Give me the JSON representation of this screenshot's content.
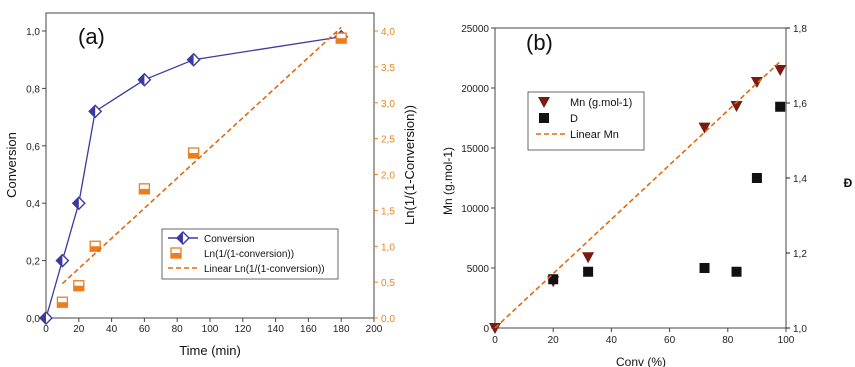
{
  "colors": {
    "conversion": "#3b3a9e",
    "ln": "#ee7d1e",
    "linear": "#e06a10",
    "mn": "#7a1a14",
    "d": "#111111",
    "right_axis_a": "#e98520",
    "axis": "#444444"
  },
  "chart_data": [
    {
      "type": "line",
      "panel_label": "(a)",
      "xlabel": "Time (min)",
      "ylabel": "Conversion",
      "y2label": "Ln(1/(1-Conversion))",
      "xlim": [
        0,
        200
      ],
      "ylim": [
        0,
        1.0
      ],
      "y2lim": [
        0,
        4.0
      ],
      "x_ticks": [
        "0",
        "20",
        "40",
        "60",
        "80",
        "100",
        "120",
        "140",
        "160",
        "180",
        "200"
      ],
      "y_ticks": [
        "0,0",
        "0,2",
        "0,4",
        "0,6",
        "0,8",
        "1,0"
      ],
      "y2_ticks": [
        "0,0",
        "0,5",
        "1,0",
        "1,5",
        "2,0",
        "2,5",
        "3,0",
        "3,5",
        "4,0"
      ],
      "series": [
        {
          "name": "Conversion",
          "axis": "left",
          "marker": "diamond",
          "line": "solid",
          "x": [
            0,
            10,
            20,
            30,
            60,
            90,
            180
          ],
          "values": [
            0,
            0.2,
            0.4,
            0.72,
            0.83,
            0.9,
            0.98
          ]
        },
        {
          "name": "Ln(1/(1-conversion))",
          "axis": "right",
          "marker": "square-half",
          "x": [
            10,
            20,
            30,
            60,
            90,
            180
          ],
          "values": [
            0.22,
            0.45,
            1.0,
            1.8,
            2.3,
            3.9
          ]
        },
        {
          "name": "Linear Ln(1/(1-conversion))",
          "axis": "right",
          "marker": "none",
          "line": "dashed",
          "x": [
            10,
            180
          ],
          "values": [
            0.48,
            4.05
          ]
        }
      ],
      "legend": {
        "position": "lower-right",
        "entries": [
          "Conversion",
          "Ln(1/(1-conversion))",
          "Linear Ln(1/(1-conversion))"
        ]
      }
    },
    {
      "type": "scatter",
      "panel_label": "(b)",
      "xlabel": "Conv (%)",
      "ylabel": "Mn (g.mol-1)",
      "y2label": "Đ",
      "xlim": [
        0,
        100
      ],
      "ylim": [
        0,
        25000
      ],
      "y2lim": [
        1.0,
        1.8
      ],
      "x_ticks": [
        "0",
        "20",
        "40",
        "60",
        "80",
        "100"
      ],
      "y_ticks": [
        "0",
        "5000",
        "10000",
        "15000",
        "20000",
        "25000"
      ],
      "y2_ticks": [
        "1,0",
        "1,2",
        "1,4",
        "1,6",
        "1,8"
      ],
      "series": [
        {
          "name": "Mn (g.mol-1)",
          "axis": "left",
          "marker": "triangle-down",
          "x": [
            0,
            20,
            32,
            72,
            83,
            90,
            98
          ],
          "values": [
            0,
            3900,
            5900,
            16700,
            18500,
            20500,
            21500
          ]
        },
        {
          "name": "D",
          "axis": "right",
          "marker": "square",
          "x": [
            20,
            32,
            72,
            83,
            90,
            98
          ],
          "values": [
            1.13,
            1.15,
            1.16,
            1.15,
            1.4,
            1.59
          ]
        },
        {
          "name": "Linear Mn",
          "axis": "left",
          "marker": "none",
          "line": "dashed",
          "x": [
            0,
            98
          ],
          "values": [
            0,
            22200
          ]
        }
      ],
      "legend": {
        "position": "upper-left",
        "entries": [
          "Mn (g.mol-1)",
          "D",
          "Linear Mn"
        ]
      }
    }
  ]
}
